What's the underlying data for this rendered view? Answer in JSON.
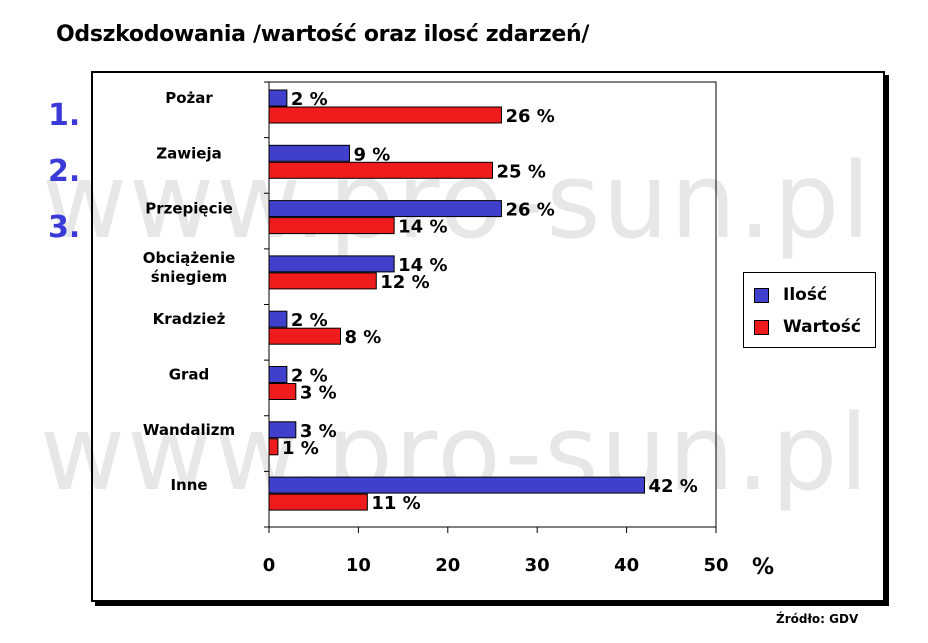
{
  "title": "Odszkodowania /wartość oraz ilosć zdarzeń/",
  "watermark": "www.pro-sun.pl",
  "ranks": [
    "1.",
    "2.",
    "3."
  ],
  "source": "Źródło: GDV",
  "colors": {
    "ilosc": "#4040cc",
    "wartosc": "#ee1c1c"
  },
  "chart_data": {
    "type": "bar",
    "orientation": "horizontal",
    "categories": [
      "Pożar",
      "Zawieja",
      "Przepięcie",
      "Obciążenie śniegiem",
      "Kradzież",
      "Grad",
      "Wandalizm",
      "Inne"
    ],
    "category_lines": [
      [
        "Pożar"
      ],
      [
        "Zawieja"
      ],
      [
        "Przepięcie"
      ],
      [
        "Obciążenie",
        "śniegiem"
      ],
      [
        "Kradzież"
      ],
      [
        "Grad"
      ],
      [
        "Wandalizm"
      ],
      [
        "Inne"
      ]
    ],
    "series": [
      {
        "name": "Ilość",
        "values": [
          2,
          9,
          26,
          14,
          2,
          2,
          3,
          42
        ],
        "labels": [
          "2 %",
          "9 %",
          "26 %",
          "14 %",
          "2 %",
          "2 %",
          "3 %",
          "42 %"
        ]
      },
      {
        "name": "Wartość",
        "values": [
          26,
          25,
          14,
          12,
          8,
          3,
          1,
          11
        ],
        "labels": [
          "26 %",
          "25 %",
          "14 %",
          "12 %",
          "8 %",
          "3 %",
          "1 %",
          "11 %"
        ]
      }
    ],
    "xlim": [
      0,
      50
    ],
    "xticks": [
      "0",
      "10",
      "20",
      "30",
      "40",
      "50"
    ],
    "xlabel": "%",
    "legend": "right",
    "grid": false
  }
}
